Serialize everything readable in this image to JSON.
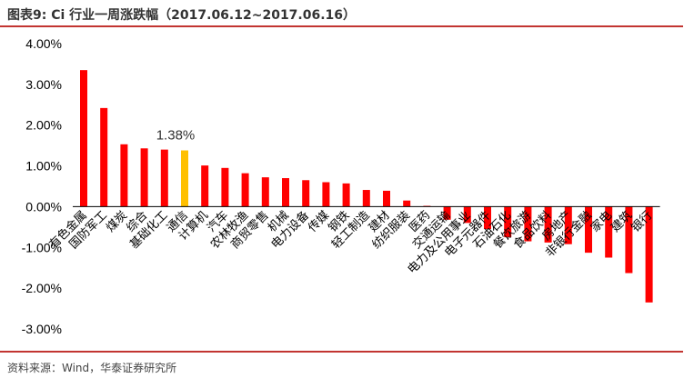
{
  "header": {
    "title": "图表9:  Ci 行业一周涨跌幅（2017.06.12~2017.06.16）"
  },
  "footer": {
    "source": "资料来源：Wind，华泰证券研究所"
  },
  "colors": {
    "bar": "#ff0000",
    "highlight": "#ffc000",
    "rule": "#c23531",
    "zero_line": "#000000"
  },
  "chart_data": {
    "type": "bar",
    "title": "Ci 行业一周涨跌幅（2017.06.12~2017.06.16）",
    "xlabel": "",
    "ylabel": "",
    "ylim": [
      -3,
      4
    ],
    "yticks": [
      4,
      3,
      2,
      1,
      0,
      -1,
      -2,
      -3
    ],
    "ytick_labels": [
      "4.00%",
      "3.00%",
      "2.00%",
      "1.00%",
      "0.00%",
      "-1.00%",
      "-2.00%",
      "-3.00%"
    ],
    "grid": false,
    "legend": "none",
    "categories": [
      "有色金属",
      "国防军工",
      "煤炭",
      "综合",
      "基础化工",
      "通信",
      "计算机",
      "汽车",
      "农林牧渔",
      "商贸零售",
      "机械",
      "电力设备",
      "传媒",
      "钢铁",
      "轻工制造",
      "建材",
      "纺织服装",
      "医药",
      "交通运输",
      "电力及公用事业",
      "电子元器件",
      "石油石化",
      "餐饮旅游",
      "食品饮料",
      "房地产",
      "非银行金融",
      "家电",
      "建筑",
      "银行"
    ],
    "values": [
      3.35,
      2.42,
      1.53,
      1.43,
      1.4,
      1.38,
      1.01,
      0.95,
      0.82,
      0.72,
      0.7,
      0.65,
      0.6,
      0.57,
      0.41,
      0.39,
      0.15,
      0.02,
      -0.32,
      -0.4,
      -0.55,
      -0.75,
      -0.85,
      -0.88,
      -0.92,
      -1.13,
      -1.25,
      -1.63,
      -2.35
    ],
    "highlight": {
      "category": "通信",
      "label": "1.38%"
    }
  }
}
